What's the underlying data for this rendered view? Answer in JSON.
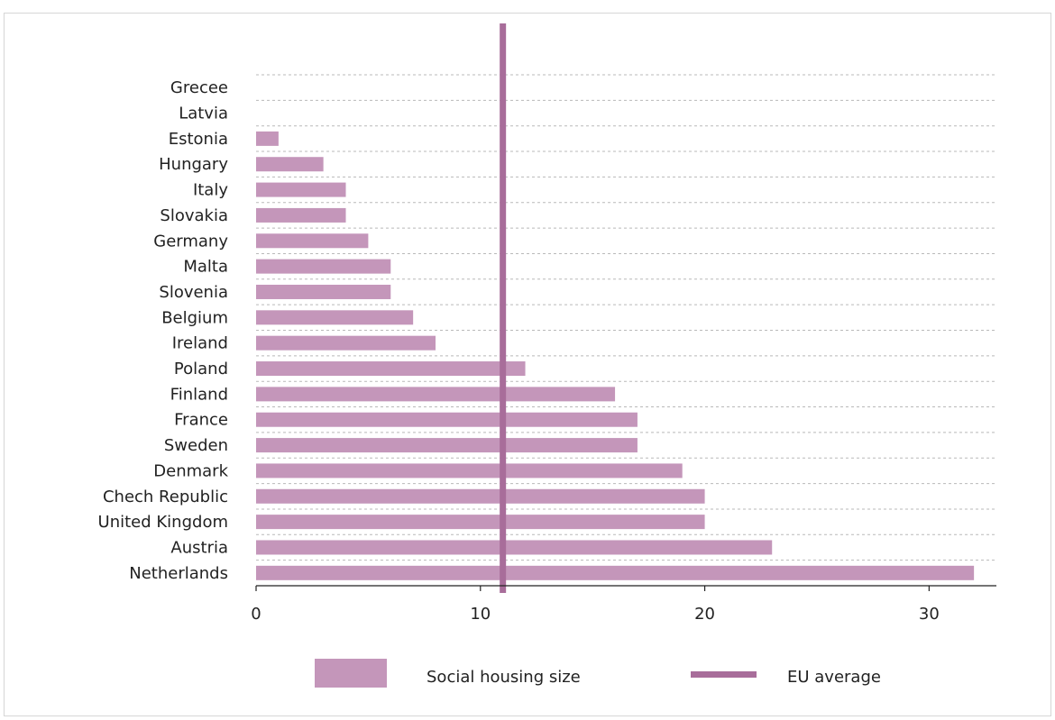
{
  "chart_data": {
    "type": "bar",
    "orientation": "horizontal",
    "title": "",
    "xlabel": "",
    "ylabel": "",
    "categories": [
      "Grecee",
      "Latvia",
      "Estonia",
      "Hungary",
      "Italy",
      "Slovakia",
      "Germany",
      "Malta",
      "Slovenia",
      "Belgium",
      "Ireland",
      "Poland",
      "Finland",
      "France",
      "Sweden",
      "Denmark",
      "Chech Republic",
      "United Kingdom",
      "Austria",
      "Netherlands"
    ],
    "series": [
      {
        "name": "Social housing size",
        "values": [
          0,
          0,
          1,
          3,
          4,
          4,
          5,
          6,
          6,
          7,
          8,
          12,
          16,
          17,
          17,
          19,
          20,
          20,
          23,
          32
        ],
        "color": "#c496ba"
      }
    ],
    "reference_lines": [
      {
        "name": "EU average",
        "value": 11,
        "color": "#a86d9a"
      }
    ],
    "xlim": [
      0,
      33
    ],
    "xticks": [
      0,
      10,
      20,
      30
    ],
    "grid": "horizontal dashed",
    "legend_position": "bottom"
  }
}
